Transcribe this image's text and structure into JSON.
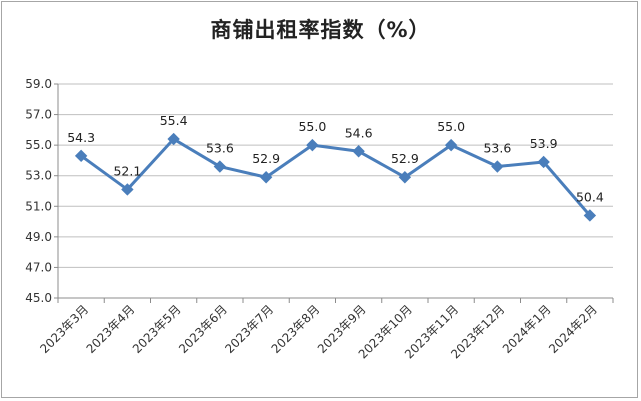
{
  "chart_data": {
    "type": "line",
    "title": "商铺出租率指数（%）",
    "xlabel": "",
    "ylabel": "",
    "categories": [
      "2023年3月",
      "2023年4月",
      "2023年5月",
      "2023年6月",
      "2023年7月",
      "2023年8月",
      "2023年9月",
      "2023年10月",
      "2023年11月",
      "2023年12月",
      "2024年1月",
      "2024年2月"
    ],
    "series": [
      {
        "values": [
          54.3,
          52.1,
          55.4,
          53.6,
          52.9,
          55.0,
          54.6,
          52.9,
          55.0,
          53.6,
          53.9,
          50.4
        ]
      }
    ],
    "ylim": [
      45.0,
      59.0
    ],
    "yticks": [
      "45.0",
      "47.0",
      "49.0",
      "51.0",
      "53.0",
      "55.0",
      "57.0",
      "59.0"
    ],
    "data_labels": [
      "54.3",
      "52.1",
      "55.4",
      "53.6",
      "52.9",
      "55.0",
      "54.6",
      "52.9",
      "55.0",
      "53.6",
      "53.9",
      "50.4"
    ],
    "grid": true,
    "line_color": "#4a7ebb"
  }
}
